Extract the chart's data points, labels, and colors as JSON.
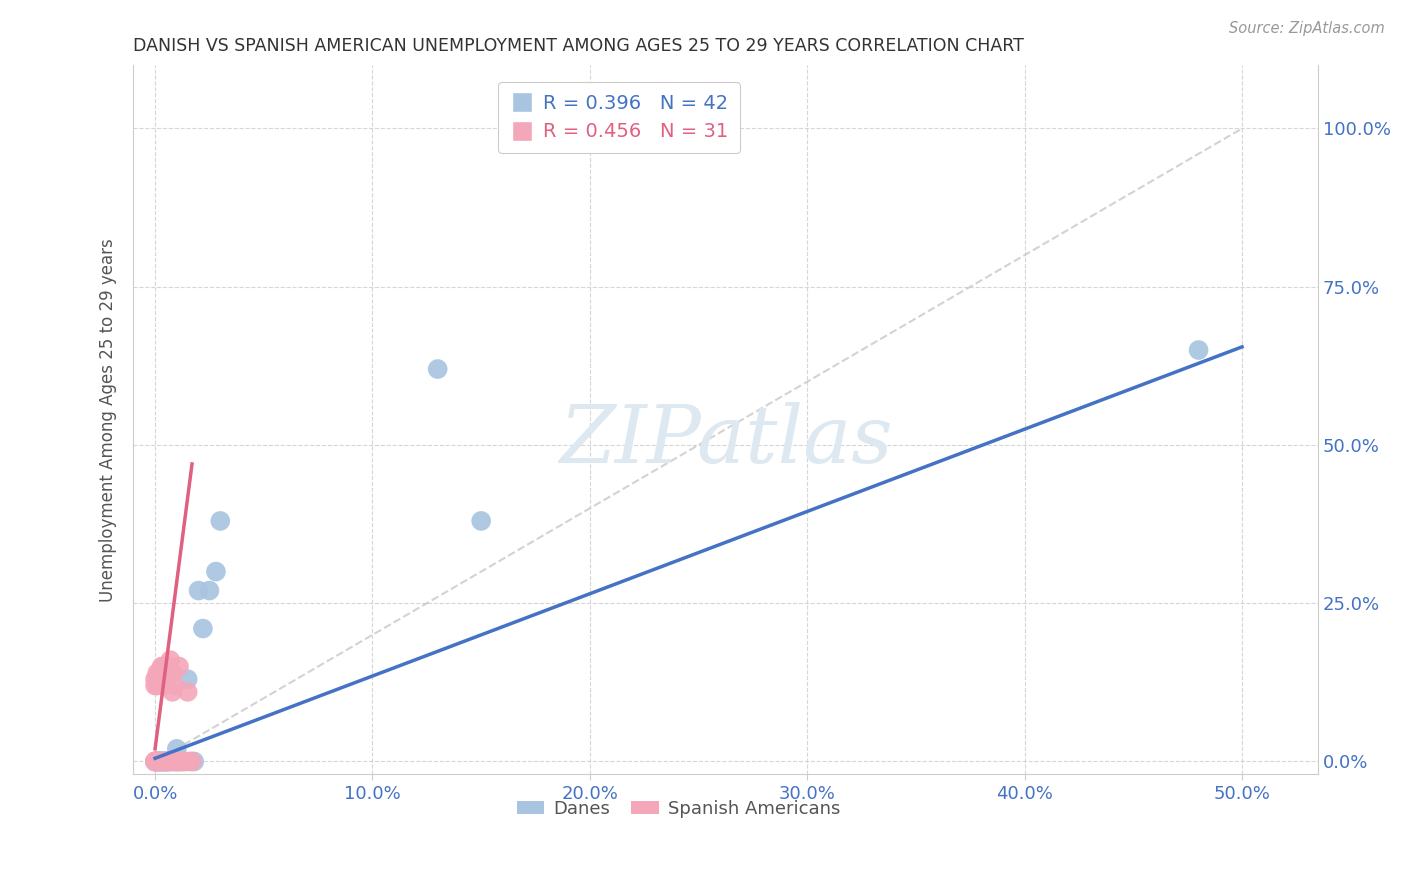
{
  "title": "DANISH VS SPANISH AMERICAN UNEMPLOYMENT AMONG AGES 25 TO 29 YEARS CORRELATION CHART",
  "source": "Source: ZipAtlas.com",
  "xlabel_ticks": [
    "0.0%",
    "10.0%",
    "20.0%",
    "30.0%",
    "40.0%",
    "50.0%"
  ],
  "xlabel_vals": [
    0.0,
    0.1,
    0.2,
    0.3,
    0.4,
    0.5
  ],
  "ylabel_ticks": [
    "0.0%",
    "25.0%",
    "50.0%",
    "75.0%",
    "100.0%"
  ],
  "ylabel_vals": [
    0.0,
    0.25,
    0.5,
    0.75,
    1.0
  ],
  "ylabel_label": "Unemployment Among Ages 25 to 29 years",
  "xlim": [
    -0.01,
    0.535
  ],
  "ylim": [
    -0.02,
    1.1
  ],
  "danes_color": "#a8c4e0",
  "spanish_color": "#f4a7b9",
  "danes_line_color": "#4472c4",
  "spanish_line_color": "#e06080",
  "diag_line_color": "#c8c8c8",
  "R_danes": 0.396,
  "N_danes": 42,
  "R_spanish": 0.456,
  "N_spanish": 31,
  "danes_x": [
    0.0,
    0.0,
    0.0,
    0.001,
    0.001,
    0.001,
    0.001,
    0.002,
    0.002,
    0.002,
    0.002,
    0.003,
    0.003,
    0.003,
    0.003,
    0.004,
    0.004,
    0.004,
    0.005,
    0.005,
    0.005,
    0.006,
    0.006,
    0.007,
    0.008,
    0.009,
    0.01,
    0.01,
    0.011,
    0.012,
    0.013,
    0.015,
    0.016,
    0.018,
    0.02,
    0.022,
    0.025,
    0.028,
    0.03,
    0.13,
    0.15,
    0.48
  ],
  "danes_y": [
    0.0,
    0.0,
    0.0,
    0.0,
    0.0,
    0.0,
    0.0,
    0.0,
    0.0,
    0.0,
    0.0,
    0.0,
    0.0,
    0.0,
    0.0,
    0.0,
    0.0,
    0.0,
    0.0,
    0.0,
    0.0,
    0.0,
    0.0,
    0.0,
    0.0,
    0.0,
    0.0,
    0.02,
    0.0,
    0.0,
    0.0,
    0.13,
    0.0,
    0.0,
    0.27,
    0.21,
    0.27,
    0.3,
    0.38,
    0.62,
    0.38,
    0.65
  ],
  "spanish_x": [
    0.0,
    0.0,
    0.0,
    0.0,
    0.0,
    0.001,
    0.001,
    0.001,
    0.002,
    0.002,
    0.002,
    0.003,
    0.003,
    0.004,
    0.004,
    0.005,
    0.005,
    0.005,
    0.006,
    0.007,
    0.007,
    0.008,
    0.008,
    0.009,
    0.01,
    0.01,
    0.011,
    0.012,
    0.014,
    0.015,
    0.017
  ],
  "spanish_y": [
    0.0,
    0.0,
    0.0,
    0.12,
    0.13,
    0.12,
    0.13,
    0.14,
    0.13,
    0.14,
    0.0,
    0.13,
    0.15,
    0.12,
    0.15,
    0.0,
    0.0,
    0.0,
    0.15,
    0.16,
    0.0,
    0.14,
    0.11,
    0.12,
    0.0,
    0.0,
    0.15,
    0.0,
    0.0,
    0.11,
    0.0
  ],
  "danes_regline_x": [
    0.0,
    0.5
  ],
  "danes_regline_y": [
    0.005,
    0.655
  ],
  "spanish_regline_x": [
    0.0,
    0.017
  ],
  "spanish_regline_y": [
    0.02,
    0.47
  ],
  "watermark_text": "ZIPatlas",
  "watermark_fontsize": 58
}
